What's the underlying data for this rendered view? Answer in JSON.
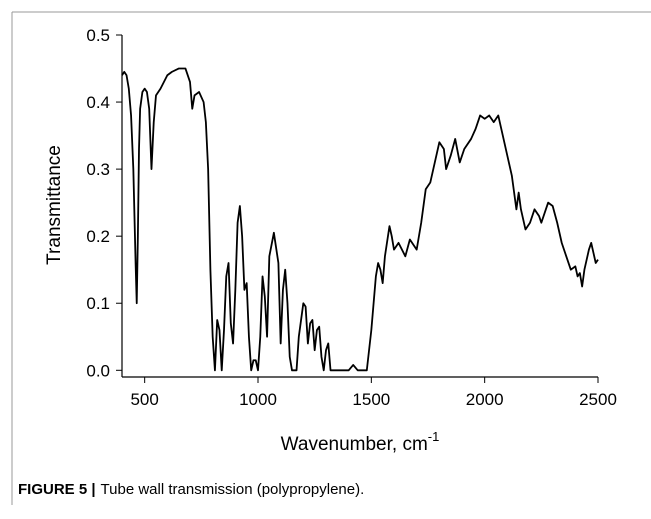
{
  "chart_data": {
    "type": "line",
    "xlabel": "Wavenumber, cm",
    "xlabel_sup": "-1",
    "ylabel": "Transmittance",
    "caption_label": "FIGURE 5 |",
    "caption": "Tube wall transmission (polypropylene).",
    "xlim": [
      400,
      2500
    ],
    "xticks": [
      500,
      1000,
      1500,
      2000,
      2500
    ],
    "ylim": [
      -0.01,
      0.5
    ],
    "yticks": [
      {
        "value": 0,
        "label": "0.0"
      },
      0.1,
      0.2,
      0.3,
      0.4,
      0.5
    ],
    "series": [
      {
        "color": "#000000",
        "x": [
          400,
          410,
          420,
          430,
          440,
          450,
          460,
          465,
          470,
          475,
          480,
          490,
          500,
          510,
          520,
          530,
          540,
          550,
          570,
          600,
          620,
          650,
          680,
          700,
          710,
          720,
          740,
          760,
          770,
          780,
          790,
          800,
          810,
          820,
          830,
          840,
          850,
          860,
          870,
          880,
          890,
          900,
          910,
          920,
          930,
          940,
          950,
          960,
          970,
          980,
          990,
          1000,
          1010,
          1020,
          1030,
          1040,
          1050,
          1070,
          1090,
          1100,
          1110,
          1120,
          1130,
          1140,
          1150,
          1170,
          1180,
          1200,
          1210,
          1220,
          1230,
          1240,
          1250,
          1260,
          1270,
          1280,
          1290,
          1300,
          1310,
          1320,
          1350,
          1400,
          1420,
          1440,
          1480,
          1500,
          1520,
          1530,
          1540,
          1550,
          1560,
          1580,
          1590,
          1600,
          1620,
          1650,
          1670,
          1700,
          1720,
          1740,
          1760,
          1780,
          1800,
          1820,
          1830,
          1850,
          1870,
          1890,
          1910,
          1940,
          1960,
          1980,
          2000,
          2020,
          2040,
          2060,
          2080,
          2100,
          2120,
          2140,
          2150,
          2160,
          2180,
          2200,
          2220,
          2240,
          2250,
          2270,
          2280,
          2300,
          2320,
          2340,
          2360,
          2380,
          2400,
          2410,
          2420,
          2430,
          2440,
          2460,
          2470,
          2480,
          2490,
          2500
        ],
        "values": [
          0.44,
          0.445,
          0.44,
          0.42,
          0.38,
          0.3,
          0.16,
          0.1,
          0.2,
          0.33,
          0.39,
          0.415,
          0.42,
          0.415,
          0.39,
          0.3,
          0.37,
          0.41,
          0.42,
          0.44,
          0.445,
          0.45,
          0.45,
          0.43,
          0.39,
          0.41,
          0.415,
          0.4,
          0.37,
          0.3,
          0.15,
          0.05,
          0.0,
          0.075,
          0.06,
          0.0,
          0.06,
          0.14,
          0.16,
          0.07,
          0.04,
          0.12,
          0.22,
          0.245,
          0.2,
          0.12,
          0.13,
          0.05,
          0.0,
          0.015,
          0.015,
          0.0,
          0.05,
          0.14,
          0.11,
          0.05,
          0.17,
          0.205,
          0.16,
          0.04,
          0.12,
          0.15,
          0.1,
          0.02,
          0.0,
          0.0,
          0.05,
          0.1,
          0.095,
          0.04,
          0.07,
          0.075,
          0.03,
          0.06,
          0.065,
          0.02,
          0.0,
          0.03,
          0.04,
          0.0,
          0.0,
          0.0,
          0.008,
          0.0,
          0.0,
          0.06,
          0.14,
          0.16,
          0.15,
          0.13,
          0.17,
          0.215,
          0.2,
          0.18,
          0.19,
          0.17,
          0.195,
          0.18,
          0.22,
          0.27,
          0.28,
          0.31,
          0.34,
          0.33,
          0.3,
          0.32,
          0.345,
          0.31,
          0.33,
          0.345,
          0.36,
          0.38,
          0.375,
          0.38,
          0.37,
          0.38,
          0.35,
          0.32,
          0.29,
          0.24,
          0.265,
          0.24,
          0.21,
          0.22,
          0.24,
          0.23,
          0.22,
          0.24,
          0.25,
          0.245,
          0.22,
          0.19,
          0.17,
          0.15,
          0.155,
          0.14,
          0.145,
          0.125,
          0.15,
          0.18,
          0.19,
          0.175,
          0.16,
          0.165
        ]
      }
    ]
  }
}
